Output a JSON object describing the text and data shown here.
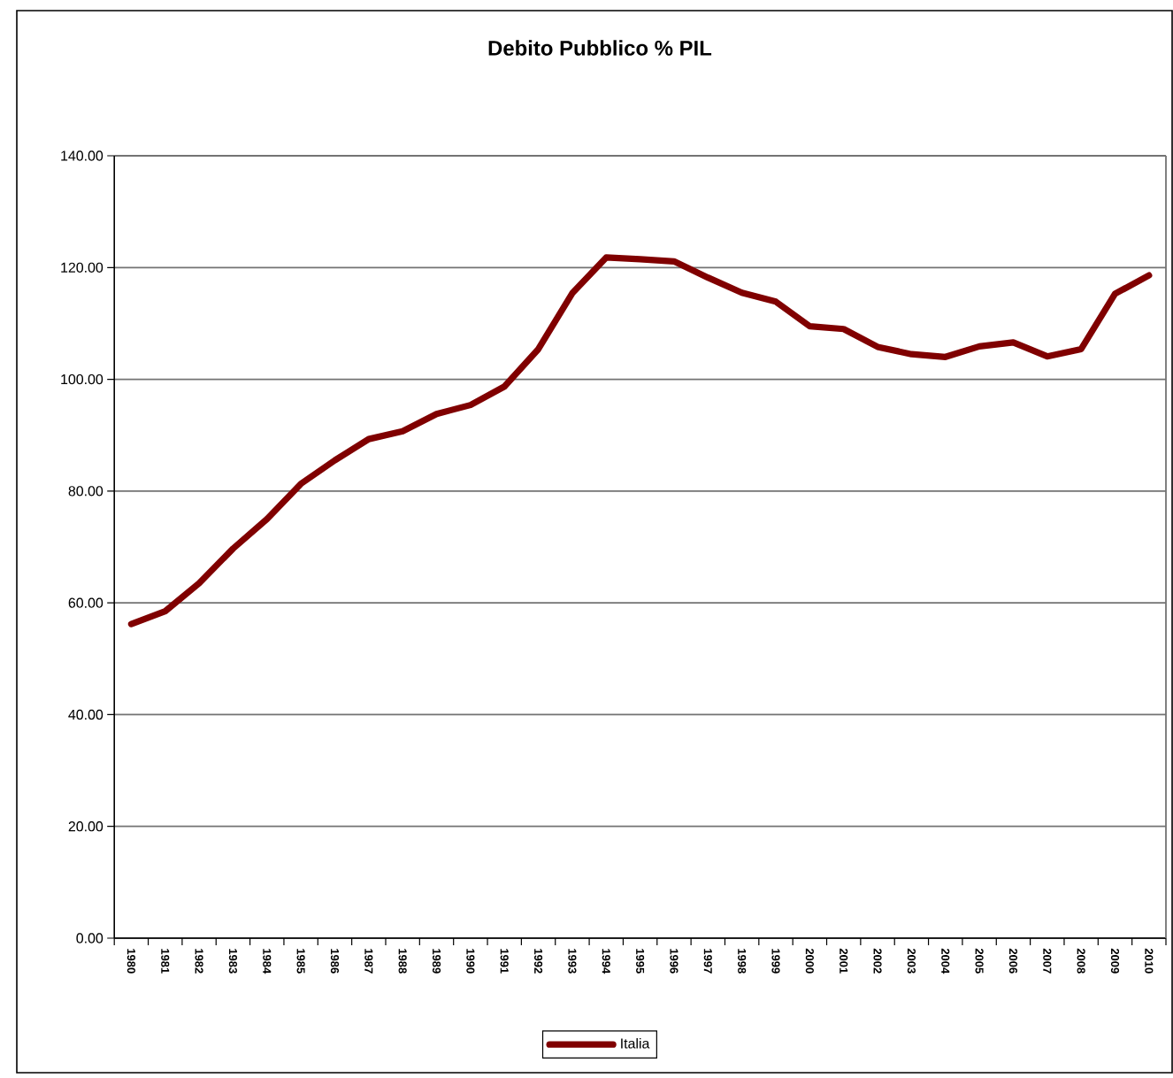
{
  "chart_data": {
    "type": "line",
    "title": "Debito Pubblico % PIL",
    "categories": [
      "1980",
      "1981",
      "1982",
      "1983",
      "1984",
      "1985",
      "1986",
      "1987",
      "1988",
      "1989",
      "1990",
      "1991",
      "1992",
      "1993",
      "1994",
      "1995",
      "1996",
      "1997",
      "1998",
      "1999",
      "2000",
      "2001",
      "2002",
      "2003",
      "2004",
      "2005",
      "2006",
      "2007",
      "2008",
      "2009",
      "2010"
    ],
    "series": [
      {
        "name": "Italia",
        "color": "#800000",
        "values": [
          56.2,
          58.5,
          63.5,
          69.7,
          75.0,
          81.3,
          85.5,
          89.3,
          90.7,
          93.8,
          95.4,
          98.7,
          105.4,
          115.4,
          121.8,
          121.5,
          121.1,
          118.2,
          115.5,
          113.9,
          109.5,
          109.0,
          105.8,
          104.5,
          104.0,
          105.9,
          106.6,
          104.1,
          105.4,
          115.3,
          118.6
        ]
      }
    ],
    "ylim": [
      0,
      140
    ],
    "yticks": [
      {
        "value": 0,
        "label": "0.00"
      },
      {
        "value": 20,
        "label": "20.00"
      },
      {
        "value": 40,
        "label": "40.00"
      },
      {
        "value": 60,
        "label": "60.00"
      },
      {
        "value": 80,
        "label": "80.00"
      },
      {
        "value": 100,
        "label": "100.00"
      },
      {
        "value": 120,
        "label": "120.00"
      },
      {
        "value": 140,
        "label": "140.00"
      }
    ],
    "grid": "y",
    "legend": "bottom"
  }
}
